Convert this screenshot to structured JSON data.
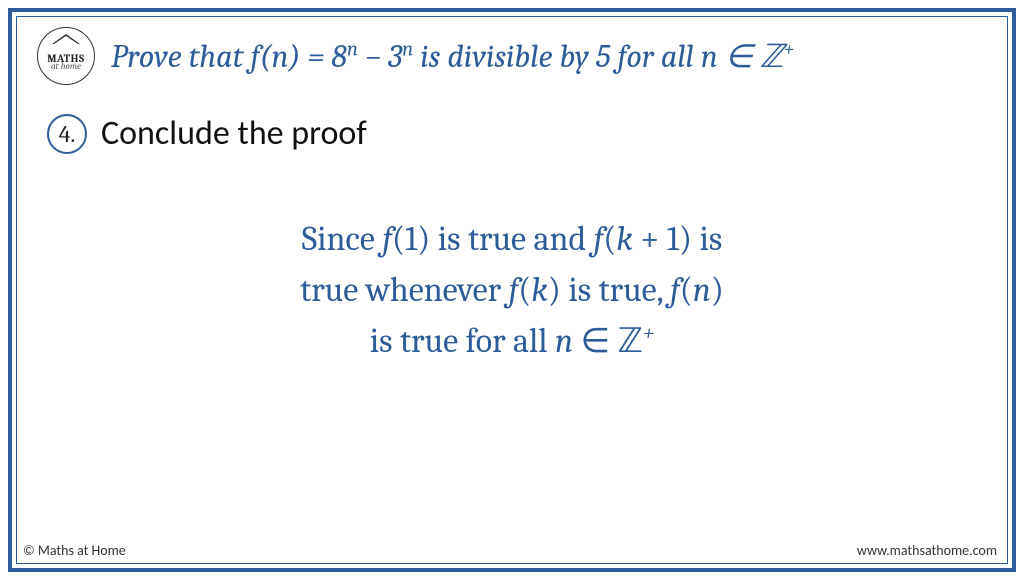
{
  "colors": {
    "accent": "#2e5c9a",
    "text": "#111",
    "footer": "#333",
    "bg": "#ffffff"
  },
  "logo": {
    "line1": "MATHS",
    "line2": "at home"
  },
  "title": {
    "prefix": "Prove that ",
    "fn": "f",
    "arg_n": "n",
    "eq": " = 8",
    "exp1": "n",
    "minus": " − 3",
    "exp2": "n",
    "suffix": " is divisible by 5 for all ",
    "var_n": "n",
    "in": " ∈ ℤ",
    "plus": "+"
  },
  "step": {
    "number": "4.",
    "label": "Conclude the proof"
  },
  "conclusion": {
    "l1a": "Since ",
    "f1": "f",
    "l1b": "(1) is true and ",
    "fk1": "f",
    "l1c": "(",
    "k": "k",
    "l1d": " + 1) is",
    "l2a": "true whenever ",
    "fk": "f",
    "l2b": "(",
    "k2": "k",
    "l2c": ") is true, ",
    "fn": "f",
    "l2d": "(",
    "n": "n",
    "l2e": ")",
    "l3a": "is true for all ",
    "n2": "n",
    "l3b": " ∈ ℤ",
    "plus": "+"
  },
  "footer": {
    "left": "© Maths at Home",
    "right": "www.mathsathome.com"
  },
  "typography": {
    "title_fontsize": 32,
    "step_fontsize": 34,
    "conclusion_fontsize": 34,
    "footer_fontsize": 14
  }
}
